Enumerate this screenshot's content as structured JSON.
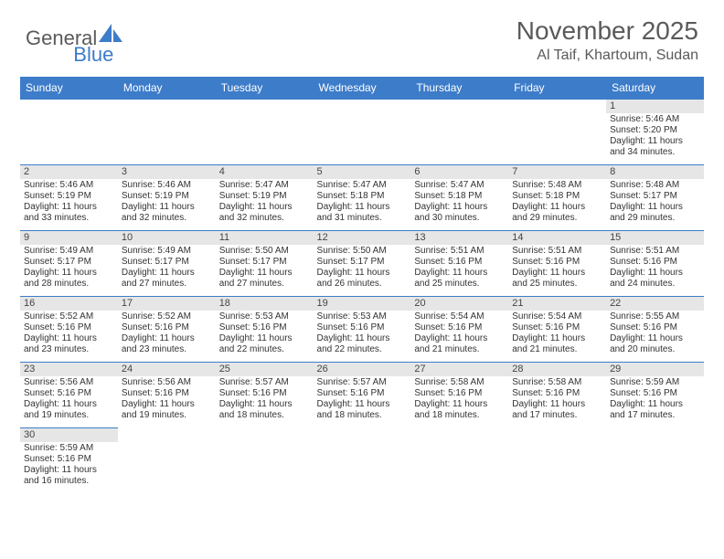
{
  "logo": {
    "text_general": "General",
    "text_blue": "Blue"
  },
  "title": "November 2025",
  "location": "Al Taif, Khartoum, Sudan",
  "weekdays": [
    "Sunday",
    "Monday",
    "Tuesday",
    "Wednesday",
    "Thursday",
    "Friday",
    "Saturday"
  ],
  "colors": {
    "header_bg": "#3d7cc9",
    "header_text": "#ffffff",
    "daynum_bg": "#e6e6e6",
    "cell_border": "#3d7cc9",
    "text": "#333333",
    "title_text": "#5a5a5a"
  },
  "rows": [
    [
      null,
      null,
      null,
      null,
      null,
      null,
      {
        "day": "1",
        "sunrise": "5:46 AM",
        "sunset": "5:20 PM",
        "daylight": "11 hours and 34 minutes."
      }
    ],
    [
      {
        "day": "2",
        "sunrise": "5:46 AM",
        "sunset": "5:19 PM",
        "daylight": "11 hours and 33 minutes."
      },
      {
        "day": "3",
        "sunrise": "5:46 AM",
        "sunset": "5:19 PM",
        "daylight": "11 hours and 32 minutes."
      },
      {
        "day": "4",
        "sunrise": "5:47 AM",
        "sunset": "5:19 PM",
        "daylight": "11 hours and 32 minutes."
      },
      {
        "day": "5",
        "sunrise": "5:47 AM",
        "sunset": "5:18 PM",
        "daylight": "11 hours and 31 minutes."
      },
      {
        "day": "6",
        "sunrise": "5:47 AM",
        "sunset": "5:18 PM",
        "daylight": "11 hours and 30 minutes."
      },
      {
        "day": "7",
        "sunrise": "5:48 AM",
        "sunset": "5:18 PM",
        "daylight": "11 hours and 29 minutes."
      },
      {
        "day": "8",
        "sunrise": "5:48 AM",
        "sunset": "5:17 PM",
        "daylight": "11 hours and 29 minutes."
      }
    ],
    [
      {
        "day": "9",
        "sunrise": "5:49 AM",
        "sunset": "5:17 PM",
        "daylight": "11 hours and 28 minutes."
      },
      {
        "day": "10",
        "sunrise": "5:49 AM",
        "sunset": "5:17 PM",
        "daylight": "11 hours and 27 minutes."
      },
      {
        "day": "11",
        "sunrise": "5:50 AM",
        "sunset": "5:17 PM",
        "daylight": "11 hours and 27 minutes."
      },
      {
        "day": "12",
        "sunrise": "5:50 AM",
        "sunset": "5:17 PM",
        "daylight": "11 hours and 26 minutes."
      },
      {
        "day": "13",
        "sunrise": "5:51 AM",
        "sunset": "5:16 PM",
        "daylight": "11 hours and 25 minutes."
      },
      {
        "day": "14",
        "sunrise": "5:51 AM",
        "sunset": "5:16 PM",
        "daylight": "11 hours and 25 minutes."
      },
      {
        "day": "15",
        "sunrise": "5:51 AM",
        "sunset": "5:16 PM",
        "daylight": "11 hours and 24 minutes."
      }
    ],
    [
      {
        "day": "16",
        "sunrise": "5:52 AM",
        "sunset": "5:16 PM",
        "daylight": "11 hours and 23 minutes."
      },
      {
        "day": "17",
        "sunrise": "5:52 AM",
        "sunset": "5:16 PM",
        "daylight": "11 hours and 23 minutes."
      },
      {
        "day": "18",
        "sunrise": "5:53 AM",
        "sunset": "5:16 PM",
        "daylight": "11 hours and 22 minutes."
      },
      {
        "day": "19",
        "sunrise": "5:53 AM",
        "sunset": "5:16 PM",
        "daylight": "11 hours and 22 minutes."
      },
      {
        "day": "20",
        "sunrise": "5:54 AM",
        "sunset": "5:16 PM",
        "daylight": "11 hours and 21 minutes."
      },
      {
        "day": "21",
        "sunrise": "5:54 AM",
        "sunset": "5:16 PM",
        "daylight": "11 hours and 21 minutes."
      },
      {
        "day": "22",
        "sunrise": "5:55 AM",
        "sunset": "5:16 PM",
        "daylight": "11 hours and 20 minutes."
      }
    ],
    [
      {
        "day": "23",
        "sunrise": "5:56 AM",
        "sunset": "5:16 PM",
        "daylight": "11 hours and 19 minutes."
      },
      {
        "day": "24",
        "sunrise": "5:56 AM",
        "sunset": "5:16 PM",
        "daylight": "11 hours and 19 minutes."
      },
      {
        "day": "25",
        "sunrise": "5:57 AM",
        "sunset": "5:16 PM",
        "daylight": "11 hours and 18 minutes."
      },
      {
        "day": "26",
        "sunrise": "5:57 AM",
        "sunset": "5:16 PM",
        "daylight": "11 hours and 18 minutes."
      },
      {
        "day": "27",
        "sunrise": "5:58 AM",
        "sunset": "5:16 PM",
        "daylight": "11 hours and 18 minutes."
      },
      {
        "day": "28",
        "sunrise": "5:58 AM",
        "sunset": "5:16 PM",
        "daylight": "11 hours and 17 minutes."
      },
      {
        "day": "29",
        "sunrise": "5:59 AM",
        "sunset": "5:16 PM",
        "daylight": "11 hours and 17 minutes."
      }
    ],
    [
      {
        "day": "30",
        "sunrise": "5:59 AM",
        "sunset": "5:16 PM",
        "daylight": "11 hours and 16 minutes."
      },
      null,
      null,
      null,
      null,
      null,
      null
    ]
  ],
  "labels": {
    "sunrise": "Sunrise:",
    "sunset": "Sunset:",
    "daylight": "Daylight:"
  }
}
